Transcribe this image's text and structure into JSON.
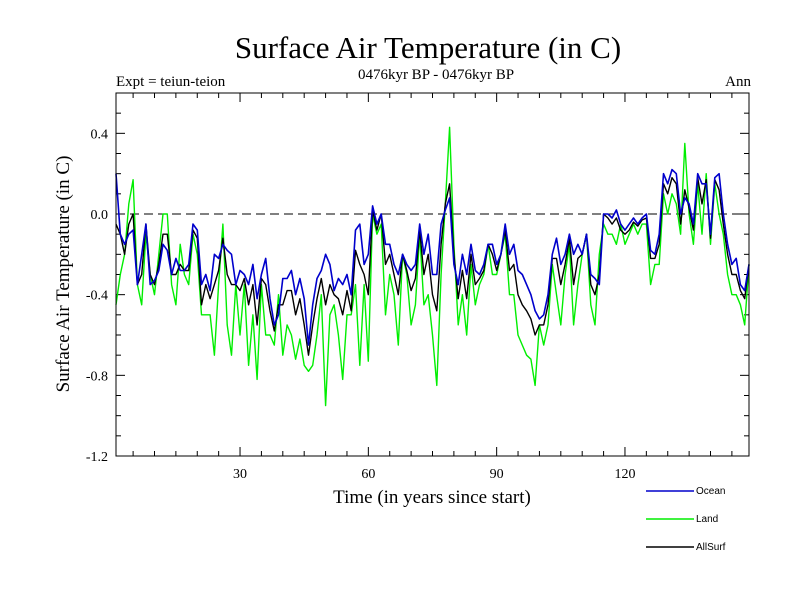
{
  "chart_data": {
    "type": "line",
    "title": "Surface Air Temperature (in C)",
    "subtitle": "0476kyr BP - 0476kyr BP",
    "expt_label": "Expt = teiun-teion",
    "season_label": "Ann",
    "xlabel": "Time (in years since start)",
    "ylabel": "Surface Air Temperature (in C)",
    "xlim": [
      1,
      149
    ],
    "ylim": [
      -1.2,
      0.6
    ],
    "xticks": [
      30,
      60,
      90,
      120
    ],
    "yticks": [
      -1.2,
      -0.8,
      -0.4,
      0.0,
      0.4
    ],
    "ytick_labels": [
      "-1.2",
      "-0.8",
      "-0.4",
      "0.0",
      "0.4"
    ],
    "reference_line": 0.0,
    "x": [
      1,
      2,
      3,
      4,
      5,
      6,
      7,
      8,
      9,
      10,
      11,
      12,
      13,
      14,
      15,
      16,
      17,
      18,
      19,
      20,
      21,
      22,
      23,
      24,
      25,
      26,
      27,
      28,
      29,
      30,
      31,
      32,
      33,
      34,
      35,
      36,
      37,
      38,
      39,
      40,
      41,
      42,
      43,
      44,
      45,
      46,
      47,
      48,
      49,
      50,
      51,
      52,
      53,
      54,
      55,
      56,
      57,
      58,
      59,
      60,
      61,
      62,
      63,
      64,
      65,
      66,
      67,
      68,
      69,
      70,
      71,
      72,
      73,
      74,
      75,
      76,
      77,
      78,
      79,
      80,
      81,
      82,
      83,
      84,
      85,
      86,
      87,
      88,
      89,
      90,
      91,
      92,
      93,
      94,
      95,
      96,
      97,
      98,
      99,
      100,
      101,
      102,
      103,
      104,
      105,
      106,
      107,
      108,
      109,
      110,
      111,
      112,
      113,
      114,
      115,
      116,
      117,
      118,
      119,
      120,
      121,
      122,
      123,
      124,
      125,
      126,
      127,
      128,
      129,
      130,
      131,
      132,
      133,
      134,
      135,
      136,
      137,
      138,
      139,
      140,
      141,
      142,
      143,
      144,
      145,
      146,
      147,
      148,
      149
    ],
    "series": [
      {
        "name": "Ocean",
        "color": "#0000cc",
        "values": [
          0.2,
          -0.1,
          -0.15,
          -0.1,
          -0.08,
          -0.35,
          -0.2,
          -0.05,
          -0.35,
          -0.33,
          -0.28,
          -0.15,
          -0.18,
          -0.3,
          -0.22,
          -0.28,
          -0.28,
          -0.25,
          -0.05,
          -0.08,
          -0.35,
          -0.3,
          -0.38,
          -0.2,
          -0.22,
          -0.15,
          -0.18,
          -0.2,
          -0.35,
          -0.28,
          -0.3,
          -0.35,
          -0.25,
          -0.42,
          -0.3,
          -0.22,
          -0.42,
          -0.55,
          -0.5,
          -0.32,
          -0.32,
          -0.28,
          -0.4,
          -0.32,
          -0.42,
          -0.65,
          -0.45,
          -0.32,
          -0.28,
          -0.2,
          -0.25,
          -0.38,
          -0.32,
          -0.35,
          -0.3,
          -0.4,
          -0.08,
          -0.05,
          -0.25,
          -0.2,
          0.04,
          -0.05,
          0.0,
          -0.15,
          -0.15,
          -0.25,
          -0.3,
          -0.2,
          -0.25,
          -0.28,
          -0.25,
          -0.05,
          -0.2,
          -0.1,
          -0.3,
          -0.3,
          -0.05,
          0.02,
          0.08,
          -0.25,
          -0.35,
          -0.2,
          -0.3,
          -0.15,
          -0.28,
          -0.3,
          -0.25,
          -0.15,
          -0.15,
          -0.25,
          -0.2,
          -0.05,
          -0.2,
          -0.15,
          -0.28,
          -0.3,
          -0.35,
          -0.4,
          -0.48,
          -0.52,
          -0.5,
          -0.4,
          -0.2,
          -0.12,
          -0.25,
          -0.2,
          -0.1,
          -0.2,
          -0.15,
          -0.2,
          -0.1,
          -0.3,
          -0.32,
          -0.35,
          0.0,
          0.0,
          -0.02,
          0.02,
          -0.05,
          -0.08,
          -0.05,
          -0.02,
          -0.05,
          -0.02,
          0.0,
          -0.18,
          -0.2,
          -0.1,
          0.2,
          0.15,
          0.22,
          0.2,
          0.0,
          0.08,
          0.05,
          -0.05,
          0.2,
          0.15,
          0.15,
          -0.1,
          0.18,
          0.2,
          0.0,
          -0.15,
          -0.25,
          -0.22,
          -0.35,
          -0.38,
          -0.25
        ]
      },
      {
        "name": "Land",
        "color": "#00ee00",
        "values": [
          -0.45,
          -0.3,
          -0.2,
          0.05,
          0.17,
          -0.35,
          -0.45,
          -0.1,
          -0.3,
          -0.4,
          -0.2,
          0.0,
          0.0,
          -0.35,
          -0.45,
          -0.15,
          -0.3,
          -0.35,
          -0.1,
          -0.2,
          -0.5,
          -0.5,
          -0.5,
          -0.7,
          -0.35,
          -0.05,
          -0.55,
          -0.7,
          -0.35,
          -0.6,
          -0.35,
          -0.75,
          -0.5,
          -0.82,
          -0.35,
          -0.6,
          -0.6,
          -0.65,
          -0.4,
          -0.7,
          -0.55,
          -0.6,
          -0.72,
          -0.62,
          -0.75,
          -0.78,
          -0.75,
          -0.6,
          -0.4,
          -0.95,
          -0.5,
          -0.45,
          -0.6,
          -0.82,
          -0.5,
          -0.5,
          -0.35,
          -0.75,
          -0.35,
          -0.73,
          0.0,
          -0.1,
          -0.05,
          -0.5,
          -0.3,
          -0.4,
          -0.65,
          -0.2,
          -0.3,
          -0.55,
          -0.45,
          -0.1,
          -0.45,
          -0.4,
          -0.6,
          -0.85,
          -0.3,
          0.05,
          0.43,
          -0.15,
          -0.55,
          -0.4,
          -0.6,
          -0.25,
          -0.45,
          -0.35,
          -0.3,
          -0.15,
          -0.3,
          -0.3,
          -0.2,
          -0.1,
          -0.4,
          -0.4,
          -0.6,
          -0.65,
          -0.7,
          -0.72,
          -0.85,
          -0.55,
          -0.65,
          -0.55,
          -0.25,
          -0.4,
          -0.55,
          -0.3,
          -0.15,
          -0.55,
          -0.35,
          -0.2,
          -0.1,
          -0.45,
          -0.55,
          -0.2,
          -0.05,
          -0.1,
          -0.1,
          -0.15,
          -0.05,
          -0.15,
          -0.1,
          -0.05,
          -0.1,
          -0.05,
          -0.05,
          -0.35,
          -0.25,
          -0.25,
          0.1,
          0.0,
          0.1,
          0.05,
          -0.1,
          0.35,
          0.0,
          -0.15,
          0.15,
          -0.1,
          0.2,
          -0.15,
          0.15,
          0.0,
          -0.1,
          -0.3,
          -0.4,
          -0.4,
          -0.45,
          -0.55,
          -0.25
        ]
      },
      {
        "name": "AllSurf",
        "color": "#000000",
        "values": [
          -0.05,
          -0.1,
          -0.2,
          -0.05,
          0.0,
          -0.35,
          -0.3,
          -0.05,
          -0.3,
          -0.35,
          -0.25,
          -0.1,
          -0.1,
          -0.3,
          -0.3,
          -0.25,
          -0.28,
          -0.28,
          -0.08,
          -0.12,
          -0.45,
          -0.35,
          -0.42,
          -0.35,
          -0.28,
          -0.12,
          -0.3,
          -0.35,
          -0.35,
          -0.38,
          -0.32,
          -0.45,
          -0.35,
          -0.55,
          -0.32,
          -0.35,
          -0.48,
          -0.58,
          -0.45,
          -0.45,
          -0.38,
          -0.38,
          -0.5,
          -0.42,
          -0.55,
          -0.7,
          -0.55,
          -0.42,
          -0.32,
          -0.45,
          -0.35,
          -0.4,
          -0.42,
          -0.5,
          -0.38,
          -0.48,
          -0.18,
          -0.25,
          -0.3,
          -0.4,
          0.02,
          -0.08,
          0.0,
          -0.25,
          -0.2,
          -0.3,
          -0.4,
          -0.2,
          -0.28,
          -0.38,
          -0.32,
          -0.08,
          -0.3,
          -0.2,
          -0.4,
          -0.48,
          -0.15,
          0.05,
          0.15,
          -0.2,
          -0.42,
          -0.28,
          -0.42,
          -0.2,
          -0.35,
          -0.32,
          -0.28,
          -0.15,
          -0.2,
          -0.28,
          -0.2,
          -0.08,
          -0.28,
          -0.25,
          -0.4,
          -0.45,
          -0.48,
          -0.52,
          -0.6,
          -0.55,
          -0.55,
          -0.45,
          -0.22,
          -0.22,
          -0.35,
          -0.25,
          -0.12,
          -0.35,
          -0.22,
          -0.2,
          -0.1,
          -0.35,
          -0.4,
          -0.3,
          0.0,
          -0.02,
          -0.05,
          -0.02,
          -0.08,
          -0.1,
          -0.08,
          -0.04,
          -0.06,
          -0.03,
          -0.02,
          -0.22,
          -0.22,
          -0.15,
          0.15,
          0.1,
          0.18,
          0.15,
          -0.05,
          0.12,
          0.03,
          -0.08,
          0.18,
          0.05,
          0.17,
          -0.12,
          0.17,
          0.12,
          -0.05,
          -0.2,
          -0.3,
          -0.3,
          -0.38,
          -0.42,
          -0.25
        ]
      }
    ],
    "legend_position": "bottom-right"
  }
}
